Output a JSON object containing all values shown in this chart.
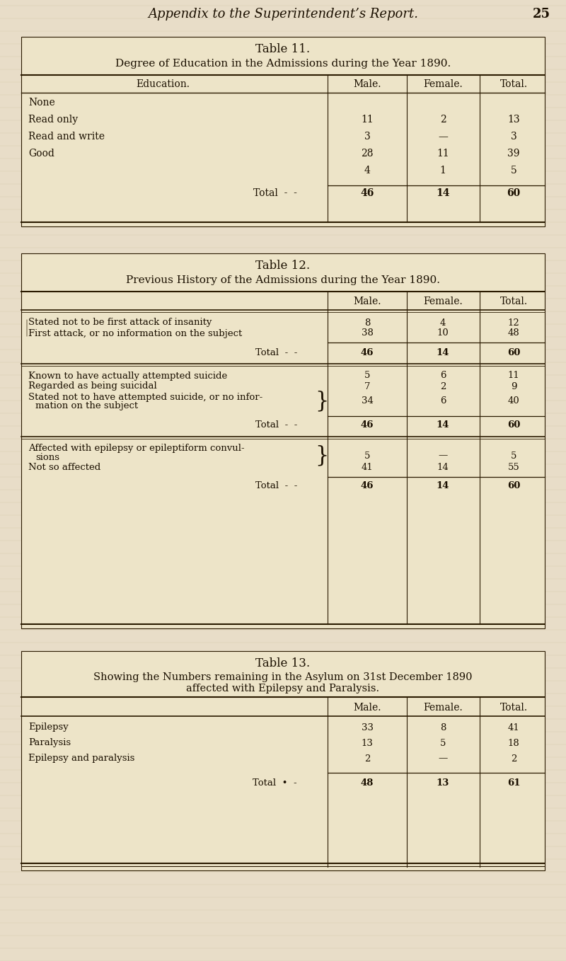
{
  "bg_color": "#e8ddc8",
  "page_header": "Appendix to the Superintendent’s Report.",
  "page_number": "25",
  "text_color": "#1a0f00",
  "line_color": "#2a1a00",
  "table11": {
    "title": "Table 11.",
    "subtitle": "Degree of Education in the Admissions during the Year 1890.",
    "col_headers": [
      "Education.",
      "Male.",
      "Female.",
      "Total."
    ],
    "rows": [
      [
        "None",
        "",
        "",
        ""
      ],
      [
        "Read only",
        "11",
        "2",
        "13"
      ],
      [
        "Read and write",
        "3",
        "—",
        "3"
      ],
      [
        "Good",
        "28",
        "11",
        "39"
      ],
      [
        "",
        "4",
        "1",
        "5"
      ]
    ],
    "total_row": [
      "Total",
      "46",
      "14",
      "60"
    ]
  },
  "table12": {
    "title": "Table 12.",
    "subtitle": "Previous History of the Admissions during the Year 1890.",
    "col_headers": [
      "",
      "Male.",
      "Female.",
      "Total."
    ],
    "s1_rows": [
      [
        "Stated not to be first attack of insanity",
        "8",
        "4",
        "12"
      ],
      [
        "First attack, or no information on the subject",
        "38",
        "10",
        "48"
      ]
    ],
    "s1_total": [
      "Total",
      "46",
      "14",
      "60"
    ],
    "s2_rows": [
      [
        "Known to have actually attempted suicide",
        "5",
        "6",
        "11"
      ],
      [
        "Regarded as being suicidal",
        "7",
        "2",
        "9"
      ],
      [
        "Stated not to have attempted suicide, or no infor-",
        "",
        "",
        ""
      ],
      [
        "    mation on the subject",
        "34",
        "6",
        "40"
      ]
    ],
    "s2_total": [
      "Total",
      "46",
      "14",
      "60"
    ],
    "s3_rows": [
      [
        "Affected with epilepsy or epileptiform convul-",
        "",
        "",
        ""
      ],
      [
        "    sions",
        "5",
        "—",
        "5"
      ],
      [
        "Not so affected",
        "41",
        "14",
        "55"
      ]
    ],
    "s3_total": [
      "Total",
      "46",
      "14",
      "60"
    ]
  },
  "table13": {
    "title": "Table 13.",
    "subtitle1": "Showing the Numbers remaining in the Asylum on 31st December 1890",
    "subtitle2": "affected with ᴇᴘɪʟᴇᴘʀвʏ and ᴘᴀʀᴀʟʏʀΙʀ.",
    "col_headers": [
      "",
      "Male.",
      "Female.",
      "Total."
    ],
    "rows": [
      [
        "Epilepsy",
        "33",
        "8",
        "41"
      ],
      [
        "Paralysis",
        "13",
        "5",
        "18"
      ],
      [
        "Epilepsy and paralysis",
        "2",
        "—",
        "2"
      ]
    ],
    "total_row": [
      "Total",
      "48",
      "13",
      "61"
    ]
  }
}
